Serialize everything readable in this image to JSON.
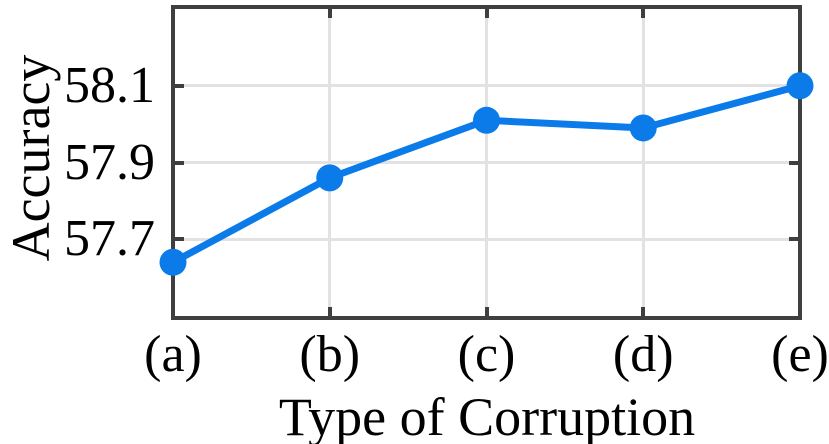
{
  "chart_data": {
    "type": "line",
    "title": "",
    "xlabel": "Type of Corruption",
    "ylabel": "Accuracy",
    "categories": [
      "(a)",
      "(b)",
      "(c)",
      "(d)",
      "(e)"
    ],
    "values": [
      57.64,
      57.86,
      58.01,
      57.99,
      58.1
    ],
    "yticks": [
      57.7,
      57.9,
      58.1
    ],
    "ylim": [
      57.5,
      58.3
    ],
    "grid": true,
    "legend": "none",
    "marker": "filled-circle",
    "colors": {
      "line": "#0b7bea",
      "marker": "#0b7bea",
      "axis_frame": "#3f3f3f",
      "gridline": "#e2e2e2",
      "text": "#000000",
      "background": "#ffffff"
    }
  }
}
